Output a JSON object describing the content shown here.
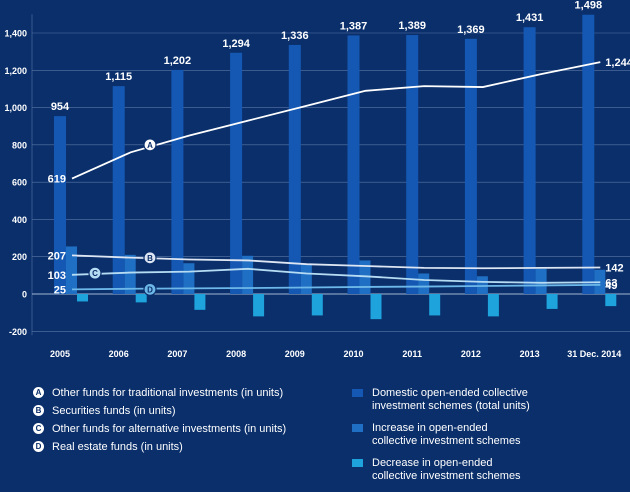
{
  "chart_data": {
    "type": "bar+line",
    "categories": [
      "2005",
      "2006",
      "2007",
      "2008",
      "2009",
      "2010",
      "2011",
      "2012",
      "2013",
      "31 Dec. 2014"
    ],
    "ylim": [
      -200,
      1500
    ],
    "yticks": [
      "-200",
      "0",
      "200",
      "400",
      "600",
      "800",
      "1,000",
      "1,200",
      "1,400"
    ],
    "ytick_values": [
      -200,
      0,
      200,
      400,
      600,
      800,
      1000,
      1200,
      1400
    ],
    "bar_series": [
      {
        "name": "Domestic open-ended collective investment schemes (total units)",
        "color": "#1458b3",
        "values": [
          954,
          1115,
          1202,
          1294,
          1336,
          1387,
          1389,
          1369,
          1431,
          1498
        ],
        "labels": [
          "954",
          "1,115",
          "1,202",
          "1,294",
          "1,336",
          "1,387",
          "1,389",
          "1,369",
          "1,431",
          "1,498"
        ]
      },
      {
        "name": "Increase in open-ended collective investment schemes",
        "color": "#1f6fc4",
        "values": [
          255,
          210,
          165,
          205,
          160,
          180,
          110,
          95,
          135,
          130
        ]
      },
      {
        "name": "Decrease in open-ended collective investment schemes",
        "color": "#1ea3dc",
        "values": [
          -40,
          -45,
          -85,
          -120,
          -115,
          -135,
          -115,
          -120,
          -80,
          -65
        ]
      }
    ],
    "line_series": [
      {
        "name": "Other funds for traditional investments (in units)",
        "badge": "A",
        "color": "#ffffff",
        "values": [
          619,
          760,
          850,
          930,
          1010,
          1090,
          1115,
          1110,
          1180,
          1244
        ],
        "start_label": "619",
        "end_label": "1,244"
      },
      {
        "name": "Securities funds (in units)",
        "badge": "B",
        "color": "#dde6f2",
        "values": [
          207,
          195,
          185,
          180,
          160,
          150,
          140,
          138,
          140,
          142
        ],
        "start_label": "207",
        "end_label": "142"
      },
      {
        "name": "Other funds for alternative investments (in units)",
        "badge": "C",
        "color": "#b5dcf3",
        "values": [
          103,
          115,
          120,
          135,
          110,
          95,
          75,
          65,
          60,
          63
        ],
        "start_label": "103",
        "end_label": "63"
      },
      {
        "name": "Real estate funds (in units)",
        "badge": "D",
        "color": "#6db8e8",
        "values": [
          25,
          28,
          30,
          32,
          35,
          38,
          40,
          43,
          46,
          49
        ],
        "start_label": "25",
        "end_label": "49"
      }
    ]
  },
  "legend": {
    "left": [
      {
        "badge": "A",
        "text": "Other funds for traditional investments (in units)"
      },
      {
        "badge": "B",
        "text": "Securities funds (in units)"
      },
      {
        "badge": "C",
        "text": "Other funds for alternative investments (in units)"
      },
      {
        "badge": "D",
        "text": "Real estate funds (in units)"
      }
    ],
    "right": [
      {
        "color": "#1458b3",
        "line1": "Domestic open-ended collective",
        "line2": "investment schemes (total units)"
      },
      {
        "color": "#1f6fc4",
        "line1": "Increase in open-ended",
        "line2": "collective investment schemes"
      },
      {
        "color": "#1ea3dc",
        "line1": "Decrease in open-ended",
        "line2": "collective investment schemes"
      }
    ]
  }
}
